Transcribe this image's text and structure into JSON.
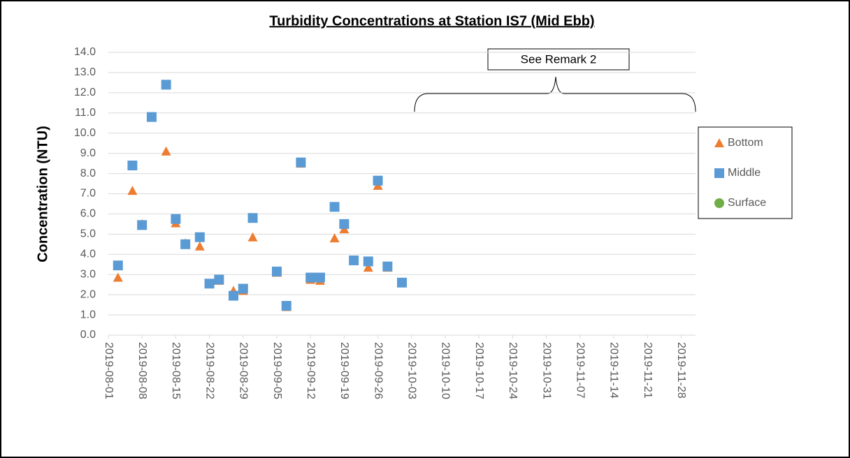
{
  "chart_data": {
    "type": "scatter",
    "title": "Turbidity Concentrations at Station IS7 (Mid Ebb)",
    "y_label": "Concentration (NTU)",
    "annotation": "See Remark 2",
    "x": [
      "2019-08-03",
      "2019-08-06",
      "2019-08-08",
      "2019-08-10",
      "2019-08-13",
      "2019-08-15",
      "2019-08-17",
      "2019-08-20",
      "2019-08-22",
      "2019-08-24",
      "2019-08-27",
      "2019-08-29",
      "2019-08-31",
      "2019-09-05",
      "2019-09-07",
      "2019-09-10",
      "2019-09-12",
      "2019-09-14",
      "2019-09-17",
      "2019-09-19",
      "2019-09-21",
      "2019-09-24",
      "2019-09-26",
      "2019-09-28",
      "2019-10-01"
    ],
    "series": [
      {
        "name": "Bottom",
        "color": "#ed7d31",
        "marker": "triangle",
        "values": [
          2.85,
          7.15,
          5.5,
          10.8,
          9.1,
          5.55,
          4.55,
          4.4,
          2.55,
          2.7,
          2.2,
          2.2,
          4.85,
          3.1,
          1.4,
          8.5,
          2.75,
          2.7,
          4.8,
          5.25,
          3.7,
          3.35,
          7.4,
          3.35,
          2.6
        ]
      },
      {
        "name": "Middle",
        "color": "#5b9bd5",
        "marker": "square",
        "values": [
          3.45,
          8.4,
          5.45,
          10.8,
          12.4,
          5.75,
          4.5,
          4.85,
          2.55,
          2.75,
          1.95,
          2.3,
          5.8,
          3.15,
          1.45,
          8.55,
          2.85,
          2.85,
          6.35,
          5.5,
          3.7,
          3.65,
          7.65,
          3.4,
          2.6
        ]
      },
      {
        "name": "Surface",
        "color": "#70ad47",
        "marker": "circle",
        "values": [
          null,
          null,
          null,
          null,
          null,
          null,
          null,
          null,
          null,
          null,
          null,
          null,
          null,
          null,
          null,
          null,
          null,
          null,
          null,
          null,
          null,
          null,
          null,
          null,
          null
        ]
      }
    ],
    "xlim": [
      "2019-08-01",
      "2019-12-01"
    ],
    "xticks": [
      "2019-08-01",
      "2019-08-08",
      "2019-08-15",
      "2019-08-22",
      "2019-08-29",
      "2019-09-05",
      "2019-09-12",
      "2019-09-19",
      "2019-09-26",
      "2019-10-03",
      "2019-10-10",
      "2019-10-17",
      "2019-10-24",
      "2019-10-31",
      "2019-11-07",
      "2019-11-14",
      "2019-11-21",
      "2019-11-28"
    ],
    "ylim": [
      0,
      14
    ],
    "yticks": [
      {
        "value": 0,
        "label": "0.0"
      },
      {
        "value": 1,
        "label": "1.0"
      },
      {
        "value": 2,
        "label": "2.0"
      },
      {
        "value": 3,
        "label": "3.0"
      },
      {
        "value": 4,
        "label": "4.0"
      },
      {
        "value": 5,
        "label": "5.0"
      },
      {
        "value": 6,
        "label": "6.0"
      },
      {
        "value": 7,
        "label": "7.0"
      },
      {
        "value": 8,
        "label": "8.0"
      },
      {
        "value": 9,
        "label": "9.0"
      },
      {
        "value": 10,
        "label": "10.0"
      },
      {
        "value": 11,
        "label": "11.0"
      },
      {
        "value": 12,
        "label": "12.0"
      },
      {
        "value": 13,
        "label": "13.0"
      },
      {
        "value": 14,
        "label": "14.0"
      }
    ],
    "grid": true,
    "legend": "right"
  }
}
